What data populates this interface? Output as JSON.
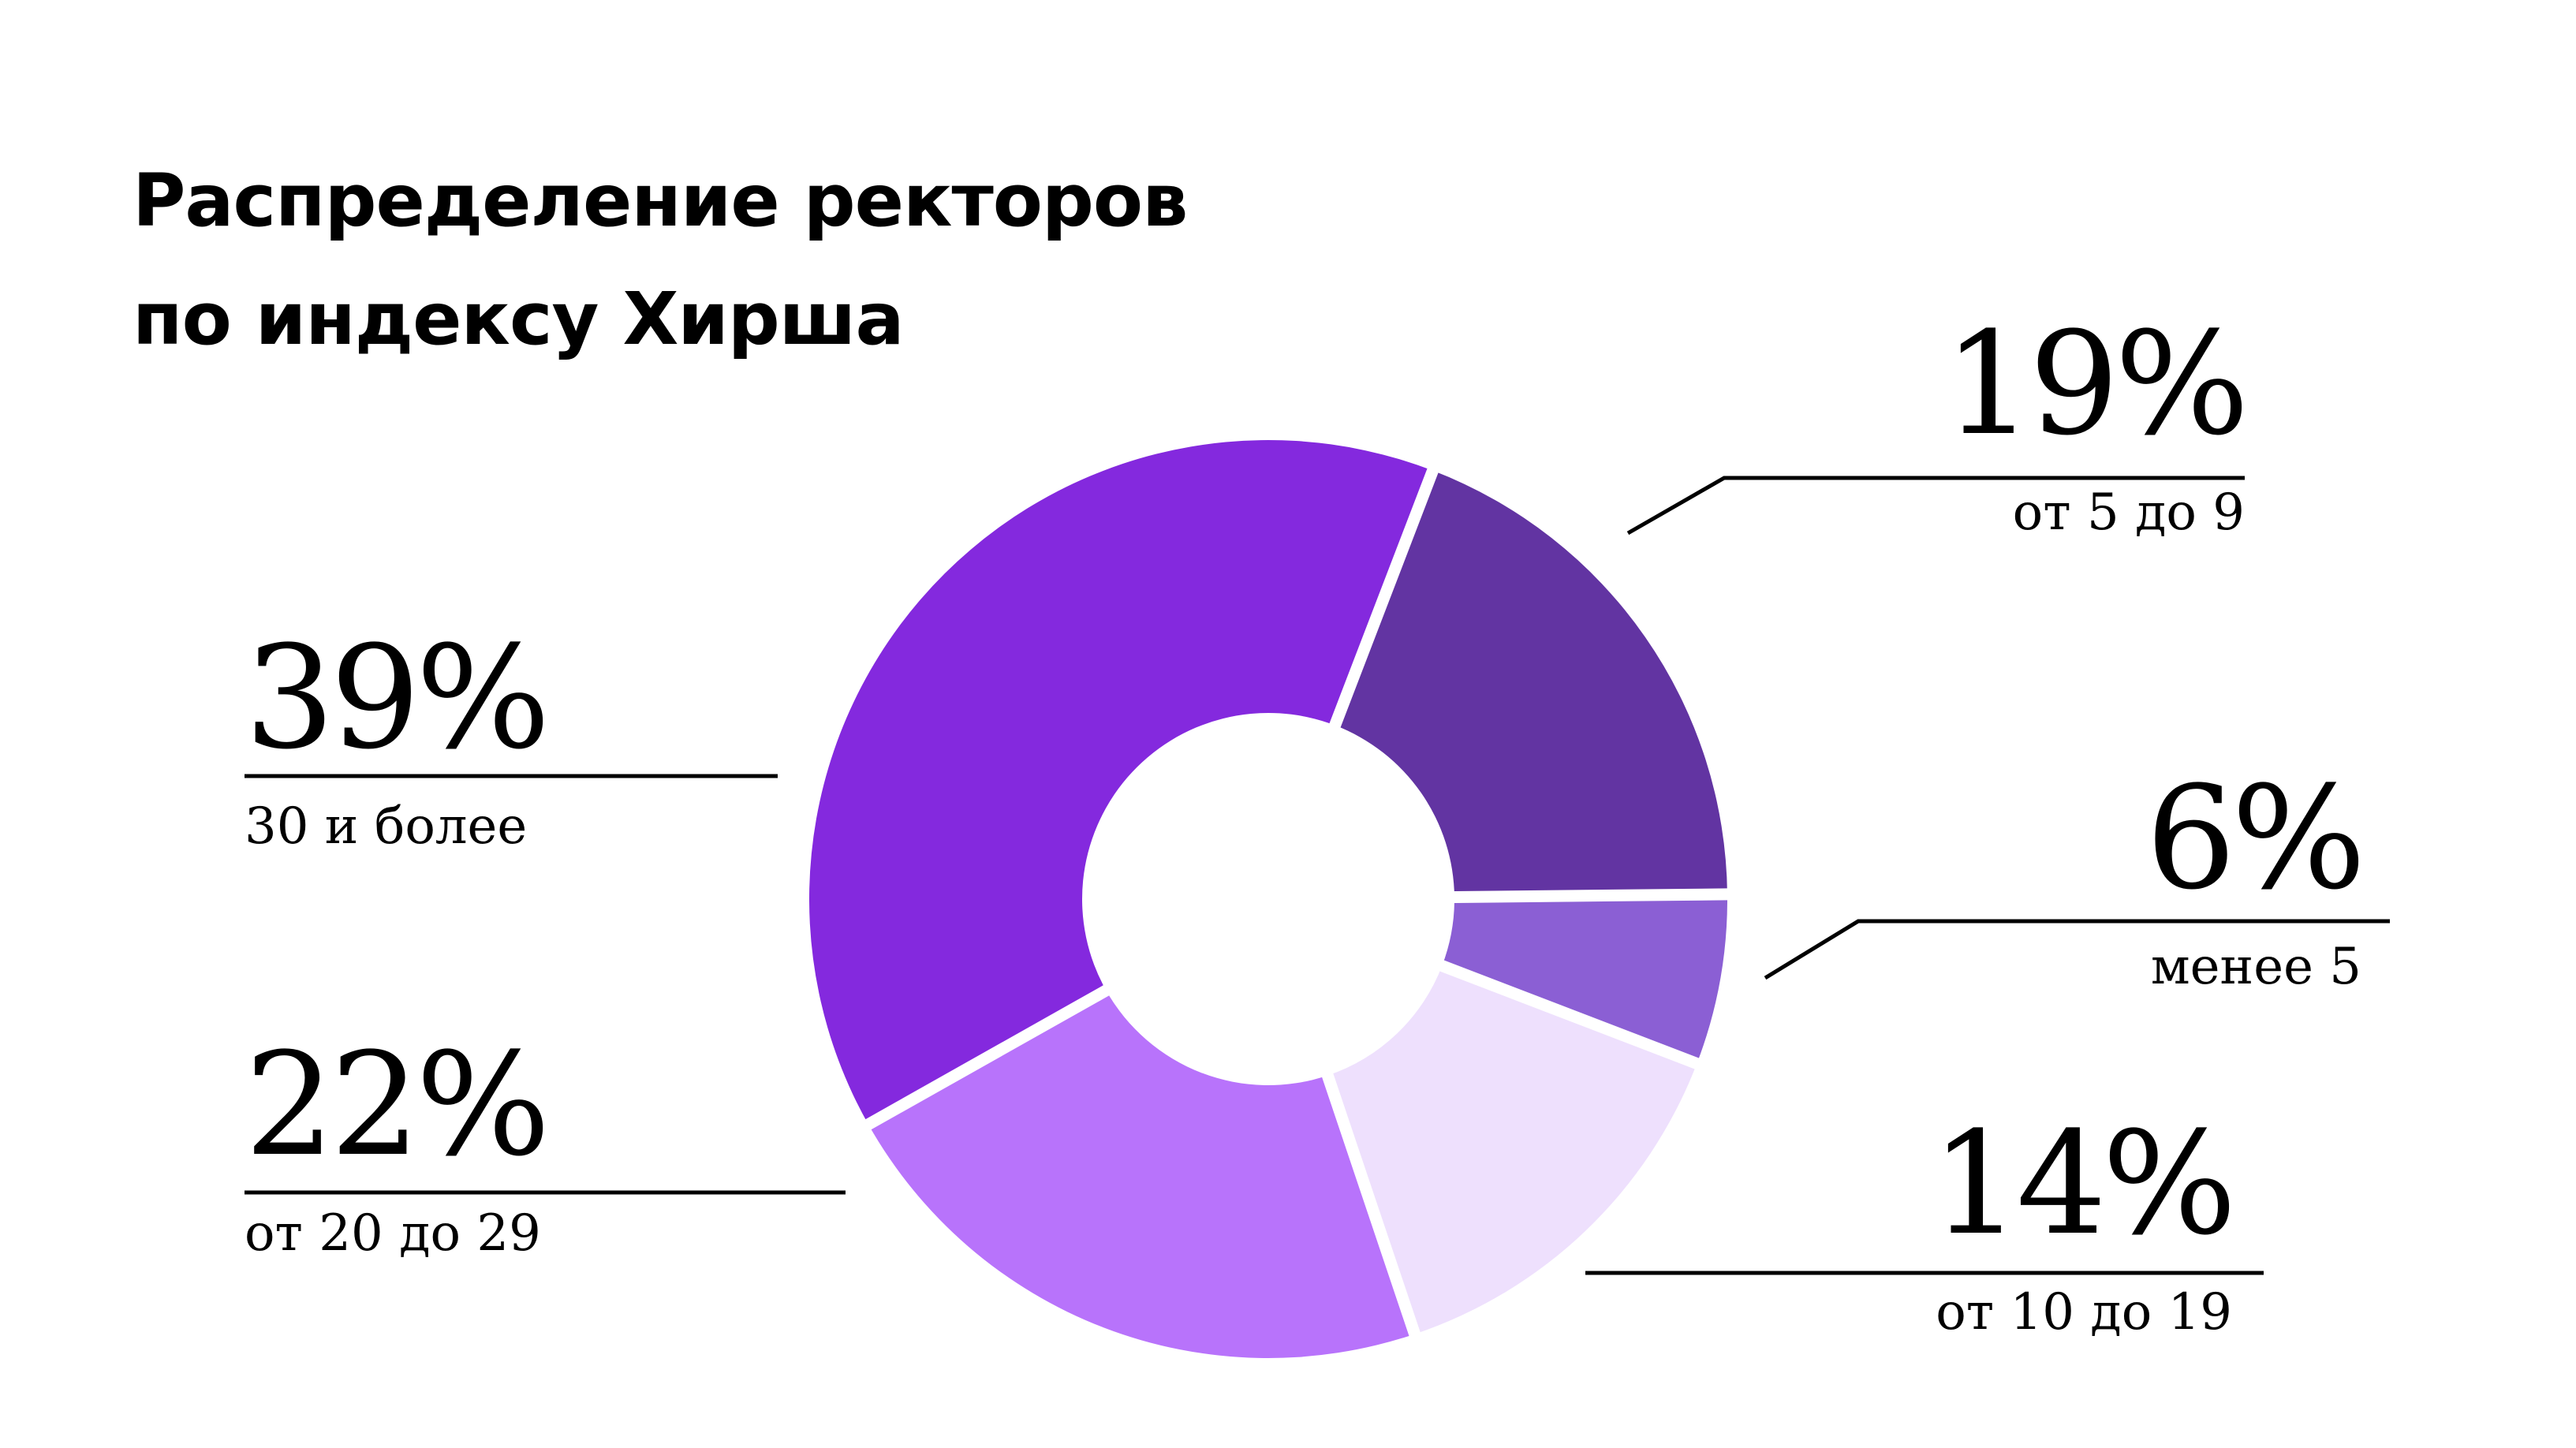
{
  "chart_data": {
    "type": "pie",
    "variant": "donut",
    "title": "Распределение ректоров по индексу Хирша",
    "title_lines": [
      "Распределение ректоров",
      "по индексу Хирша"
    ],
    "unit": "%",
    "slices": [
      {
        "category": "от 5 до 9",
        "value": 19,
        "label": "19%",
        "color": "#6234A2"
      },
      {
        "category": "менее 5",
        "value": 6,
        "label": "6%",
        "color": "#8B5FD4"
      },
      {
        "category": "от 10 до 19",
        "value": 14,
        "label": "14%",
        "color": "#EEE0FD"
      },
      {
        "category": "от 20 до 29",
        "value": 22,
        "label": "22%",
        "color": "#B873FB"
      },
      {
        "category": "30 и более",
        "value": 39,
        "label": "39%",
        "color": "#8429DE"
      }
    ],
    "legend": "none",
    "grid": false
  }
}
